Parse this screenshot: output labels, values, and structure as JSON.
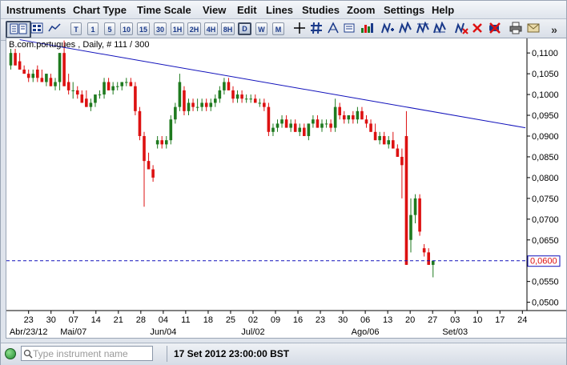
{
  "menu": [
    "Instruments",
    "Chart Type",
    "Time Scale",
    "View",
    "Edit",
    "Lines",
    "Studies",
    "Zoom",
    "Settings",
    "Help"
  ],
  "toolbar": {
    "timescale_buttons": [
      "T",
      "1",
      "5",
      "10",
      "15",
      "30",
      "1H",
      "2H",
      "4H",
      "8H",
      "D",
      "W",
      "M"
    ],
    "active_timescale": "D",
    "icons": [
      "crosshair-icon",
      "hash-grid-icon",
      "spread-icon",
      "bar-chart-icon",
      "add-line-icon",
      "line-tool-icon",
      "delete-line-icon",
      "cancel-icon",
      "eraser-icon",
      "print-icon",
      "mail-icon",
      "more-icon"
    ],
    "more_glyph": "»"
  },
  "chart": {
    "legend": "B.com.portugues , Daily, # 111 / 300",
    "current_price_label": "0,0600"
  },
  "status": {
    "search_placeholder": "Type instrument name",
    "datetime": "17 Set 2012 23:00:00 BST"
  },
  "chart_data": {
    "type": "candlestick",
    "instrument": "B.com.portugues",
    "timeframe": "Daily",
    "y_ticks": [
      "0,1100",
      "0,1050",
      "0,1000",
      "0,0950",
      "0,0900",
      "0,0850",
      "0,0800",
      "0,0750",
      "0,0700",
      "0,0650",
      "0,0600",
      "0,0550",
      "0,0500"
    ],
    "ylim": [
      0.048,
      0.1135
    ],
    "x_day_labels": [
      "23",
      "30",
      "07",
      "14",
      "21",
      "28",
      "04",
      "11",
      "18",
      "25",
      "02",
      "09",
      "16",
      "23",
      "30",
      "06",
      "13",
      "20",
      "27",
      "03",
      "10",
      "17",
      "24"
    ],
    "x_month_labels": [
      {
        "label": "Abr/23/12",
        "at": 0
      },
      {
        "label": "Mai/07",
        "at": 2
      },
      {
        "label": "Jun/04",
        "at": 6
      },
      {
        "label": "Jul/02",
        "at": 10
      },
      {
        "label": "Ago/06",
        "at": 15
      },
      {
        "label": "Set/03",
        "at": 19
      }
    ],
    "colors": {
      "up": "#1f7a1f",
      "down": "#dd1111",
      "trendline": "#1111bb",
      "horizontal_line": "#1111bb"
    },
    "trendline": {
      "start_value": 0.1132,
      "end_value": 0.092
    },
    "horizontal_line_value": 0.06,
    "candles": [
      [
        0.107,
        0.111,
        0.106,
        0.11
      ],
      [
        0.11,
        0.111,
        0.107,
        0.107
      ],
      [
        0.108,
        0.11,
        0.106,
        0.106
      ],
      [
        0.106,
        0.107,
        0.105,
        0.105
      ],
      [
        0.105,
        0.106,
        0.103,
        0.104
      ],
      [
        0.104,
        0.106,
        0.103,
        0.105
      ],
      [
        0.106,
        0.107,
        0.103,
        0.104
      ],
      [
        0.104,
        0.106,
        0.103,
        0.103
      ],
      [
        0.103,
        0.105,
        0.102,
        0.105
      ],
      [
        0.104,
        0.105,
        0.102,
        0.102
      ],
      [
        0.102,
        0.104,
        0.101,
        0.103
      ],
      [
        0.103,
        0.11,
        0.101,
        0.11
      ],
      [
        0.11,
        0.113,
        0.102,
        0.102
      ],
      [
        0.103,
        0.105,
        0.1,
        0.101
      ],
      [
        0.101,
        0.103,
        0.099,
        0.101
      ],
      [
        0.101,
        0.102,
        0.099,
        0.1
      ],
      [
        0.1,
        0.101,
        0.098,
        0.098
      ],
      [
        0.099,
        0.101,
        0.097,
        0.097
      ],
      [
        0.097,
        0.099,
        0.096,
        0.098
      ],
      [
        0.098,
        0.1,
        0.097,
        0.1
      ],
      [
        0.1,
        0.101,
        0.099,
        0.1
      ],
      [
        0.1,
        0.104,
        0.099,
        0.103
      ],
      [
        0.103,
        0.104,
        0.101,
        0.101
      ],
      [
        0.101,
        0.103,
        0.1,
        0.102
      ],
      [
        0.102,
        0.103,
        0.101,
        0.102
      ],
      [
        0.102,
        0.103,
        0.101,
        0.103
      ],
      [
        0.103,
        0.104,
        0.102,
        0.103
      ],
      [
        0.103,
        0.104,
        0.102,
        0.102
      ],
      [
        0.102,
        0.103,
        0.095,
        0.096
      ],
      [
        0.096,
        0.097,
        0.089,
        0.09
      ],
      [
        0.09,
        0.091,
        0.073,
        0.084
      ],
      [
        0.084,
        0.086,
        0.082,
        0.082
      ],
      [
        0.082,
        0.083,
        0.079,
        0.08
      ],
      [
        0.088,
        0.09,
        0.087,
        0.089
      ],
      [
        0.089,
        0.09,
        0.087,
        0.088
      ],
      [
        0.088,
        0.09,
        0.087,
        0.089
      ],
      [
        0.089,
        0.095,
        0.088,
        0.094
      ],
      [
        0.094,
        0.098,
        0.093,
        0.097
      ],
      [
        0.097,
        0.105,
        0.096,
        0.103
      ],
      [
        0.101,
        0.102,
        0.095,
        0.096
      ],
      [
        0.096,
        0.099,
        0.095,
        0.098
      ],
      [
        0.098,
        0.099,
        0.096,
        0.097
      ],
      [
        0.097,
        0.099,
        0.096,
        0.097
      ],
      [
        0.097,
        0.099,
        0.096,
        0.098
      ],
      [
        0.098,
        0.099,
        0.096,
        0.097
      ],
      [
        0.097,
        0.099,
        0.096,
        0.098
      ],
      [
        0.098,
        0.1,
        0.097,
        0.099
      ],
      [
        0.099,
        0.102,
        0.098,
        0.101
      ],
      [
        0.101,
        0.104,
        0.1,
        0.103
      ],
      [
        0.103,
        0.104,
        0.101,
        0.101
      ],
      [
        0.101,
        0.102,
        0.098,
        0.099
      ],
      [
        0.099,
        0.101,
        0.098,
        0.1
      ],
      [
        0.1,
        0.101,
        0.098,
        0.099
      ],
      [
        0.099,
        0.1,
        0.098,
        0.099
      ],
      [
        0.099,
        0.1,
        0.098,
        0.099
      ],
      [
        0.099,
        0.1,
        0.098,
        0.098
      ],
      [
        0.098,
        0.099,
        0.097,
        0.098
      ],
      [
        0.098,
        0.099,
        0.096,
        0.097
      ],
      [
        0.097,
        0.098,
        0.09,
        0.091
      ],
      [
        0.091,
        0.093,
        0.09,
        0.092
      ],
      [
        0.092,
        0.094,
        0.091,
        0.093
      ],
      [
        0.093,
        0.095,
        0.092,
        0.094
      ],
      [
        0.094,
        0.095,
        0.092,
        0.092
      ],
      [
        0.092,
        0.094,
        0.091,
        0.093
      ],
      [
        0.093,
        0.094,
        0.091,
        0.091
      ],
      [
        0.091,
        0.093,
        0.09,
        0.092
      ],
      [
        0.092,
        0.093,
        0.09,
        0.09
      ],
      [
        0.09,
        0.093,
        0.089,
        0.093
      ],
      [
        0.093,
        0.095,
        0.092,
        0.094
      ],
      [
        0.094,
        0.095,
        0.092,
        0.092
      ],
      [
        0.092,
        0.094,
        0.091,
        0.093
      ],
      [
        0.093,
        0.094,
        0.092,
        0.093
      ],
      [
        0.093,
        0.094,
        0.091,
        0.092
      ],
      [
        0.092,
        0.099,
        0.091,
        0.097
      ],
      [
        0.097,
        0.098,
        0.094,
        0.095
      ],
      [
        0.095,
        0.096,
        0.093,
        0.094
      ],
      [
        0.094,
        0.095,
        0.093,
        0.095
      ],
      [
        0.095,
        0.096,
        0.093,
        0.094
      ],
      [
        0.094,
        0.097,
        0.093,
        0.096
      ],
      [
        0.096,
        0.097,
        0.094,
        0.094
      ],
      [
        0.094,
        0.095,
        0.092,
        0.093
      ],
      [
        0.093,
        0.094,
        0.091,
        0.091
      ],
      [
        0.091,
        0.093,
        0.089,
        0.089
      ],
      [
        0.089,
        0.091,
        0.088,
        0.09
      ],
      [
        0.09,
        0.091,
        0.088,
        0.088
      ],
      [
        0.088,
        0.09,
        0.087,
        0.089
      ],
      [
        0.089,
        0.091,
        0.087,
        0.087
      ],
      [
        0.087,
        0.088,
        0.085,
        0.085
      ],
      [
        0.085,
        0.087,
        0.075,
        0.083
      ],
      [
        0.09,
        0.096,
        0.059,
        0.059
      ],
      [
        0.065,
        0.075,
        0.062,
        0.071
      ],
      [
        0.071,
        0.076,
        0.069,
        0.075
      ],
      [
        0.075,
        0.076,
        0.066,
        0.067
      ],
      [
        0.063,
        0.064,
        0.061,
        0.062
      ],
      [
        0.062,
        0.063,
        0.059,
        0.059
      ],
      [
        0.059,
        0.06,
        0.056,
        0.06
      ]
    ]
  }
}
